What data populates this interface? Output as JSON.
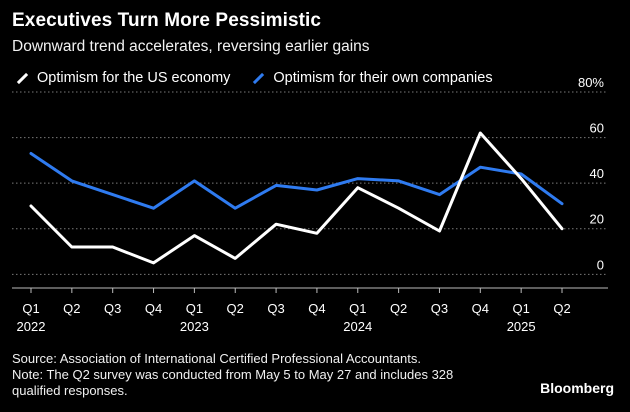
{
  "header": {
    "title": "Executives Turn More Pessimistic",
    "subtitle": "Downward trend accelerates, reversing earlier gains"
  },
  "colors": {
    "background": "#000000",
    "us_economy": "#ffffff",
    "own_companies": "#2f7bf0",
    "grid": "#7a7a7a"
  },
  "chart_data": {
    "type": "line",
    "x": [
      "Q1 2022",
      "Q2 2022",
      "Q3 2022",
      "Q4 2022",
      "Q1 2023",
      "Q2 2023",
      "Q3 2023",
      "Q4 2023",
      "Q1 2024",
      "Q2 2024",
      "Q3 2024",
      "Q4 2024",
      "Q1 2025",
      "Q2 2025"
    ],
    "x_tick_labels": [
      "Q1",
      "Q2",
      "Q3",
      "Q4",
      "Q1",
      "Q2",
      "Q3",
      "Q4",
      "Q1",
      "Q2",
      "Q3",
      "Q4",
      "Q1",
      "Q2"
    ],
    "x_year_labels": [
      {
        "index": 0,
        "label": "2022"
      },
      {
        "index": 4,
        "label": "2023"
      },
      {
        "index": 8,
        "label": "2024"
      },
      {
        "index": 12,
        "label": "2025"
      }
    ],
    "series": [
      {
        "name": "Optimism for the US economy",
        "color": "#ffffff",
        "values": [
          30,
          12,
          12,
          5,
          17,
          7,
          22,
          18,
          38,
          29,
          19,
          62,
          42,
          20
        ]
      },
      {
        "name": "Optimism for their own companies",
        "color": "#2f7bf0",
        "values": [
          53,
          41,
          35,
          29,
          41,
          29,
          39,
          37,
          42,
          41,
          35,
          47,
          44,
          31
        ]
      }
    ],
    "ylim": [
      -6,
      80
    ],
    "y_ticks": [
      0,
      20,
      40,
      60,
      80
    ],
    "y_tick_labels": [
      "0",
      "20",
      "40",
      "60",
      "80%"
    ],
    "grid": true,
    "legend_position": "top-left"
  },
  "footer": {
    "source_line1": "Source: Association of International Certified Professional Accountants.",
    "source_line2": "Note: The Q2 survey was conducted from May 5 to May 27 and includes 328",
    "source_line3": "qualified responses.",
    "brand": "Bloomberg"
  }
}
